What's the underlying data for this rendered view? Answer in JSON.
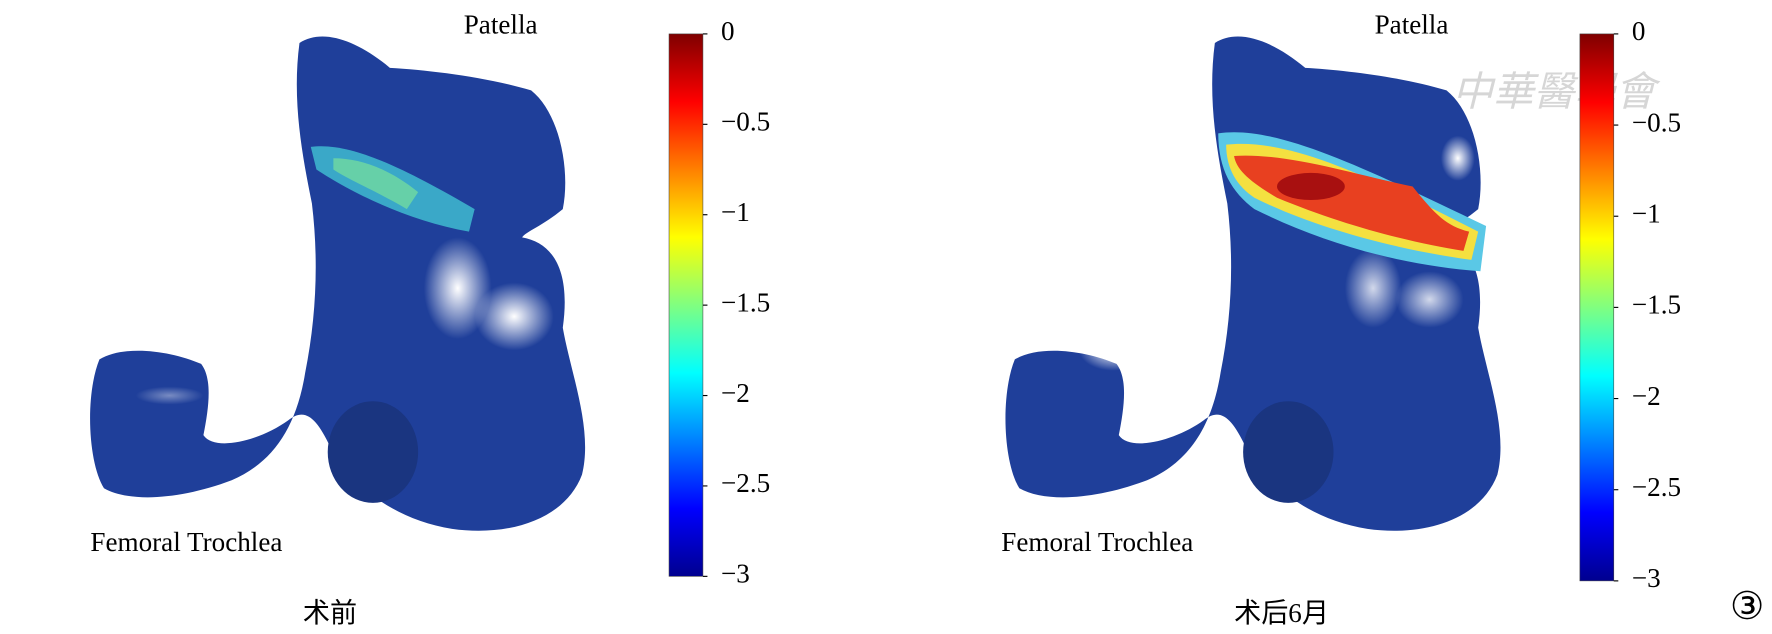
{
  "panels": [
    {
      "top_label": "Patella",
      "bottom_label": "Femoral Trochlea",
      "caption": "术前",
      "colorbar": {
        "lim": [
          -3,
          0
        ],
        "ticks": [
          0,
          {
            "value": -0.5,
            "label": "−0.5"
          },
          {
            "value": -1,
            "label": "−1"
          },
          {
            "value": -1.5,
            "label": "−1.5"
          },
          {
            "value": -2,
            "label": "−2"
          },
          {
            "value": -2.5,
            "label": "−2.5"
          },
          {
            "value": -3,
            "label": "−3"
          }
        ]
      }
    },
    {
      "top_label": "Patella",
      "bottom_label": "Femoral Trochlea",
      "caption": "术后6月",
      "colorbar": {
        "lim": [
          -3,
          0
        ],
        "ticks": [
          0,
          {
            "value": -0.5,
            "label": "−0.5"
          },
          {
            "value": -1,
            "label": "−1"
          },
          {
            "value": -1.5,
            "label": "−1.5"
          },
          {
            "value": -2,
            "label": "−2"
          },
          {
            "value": -2.5,
            "label": "−2.5"
          },
          {
            "value": -3,
            "label": "−3"
          }
        ]
      }
    }
  ],
  "colormap": [
    "#7f0000",
    "#ff0000",
    "#ff8000",
    "#ffff00",
    "#80ff80",
    "#00ffff",
    "#0080ff",
    "#0000ff",
    "#00008f"
  ],
  "watermark": "中華醫學會",
  "figure_number": "③"
}
